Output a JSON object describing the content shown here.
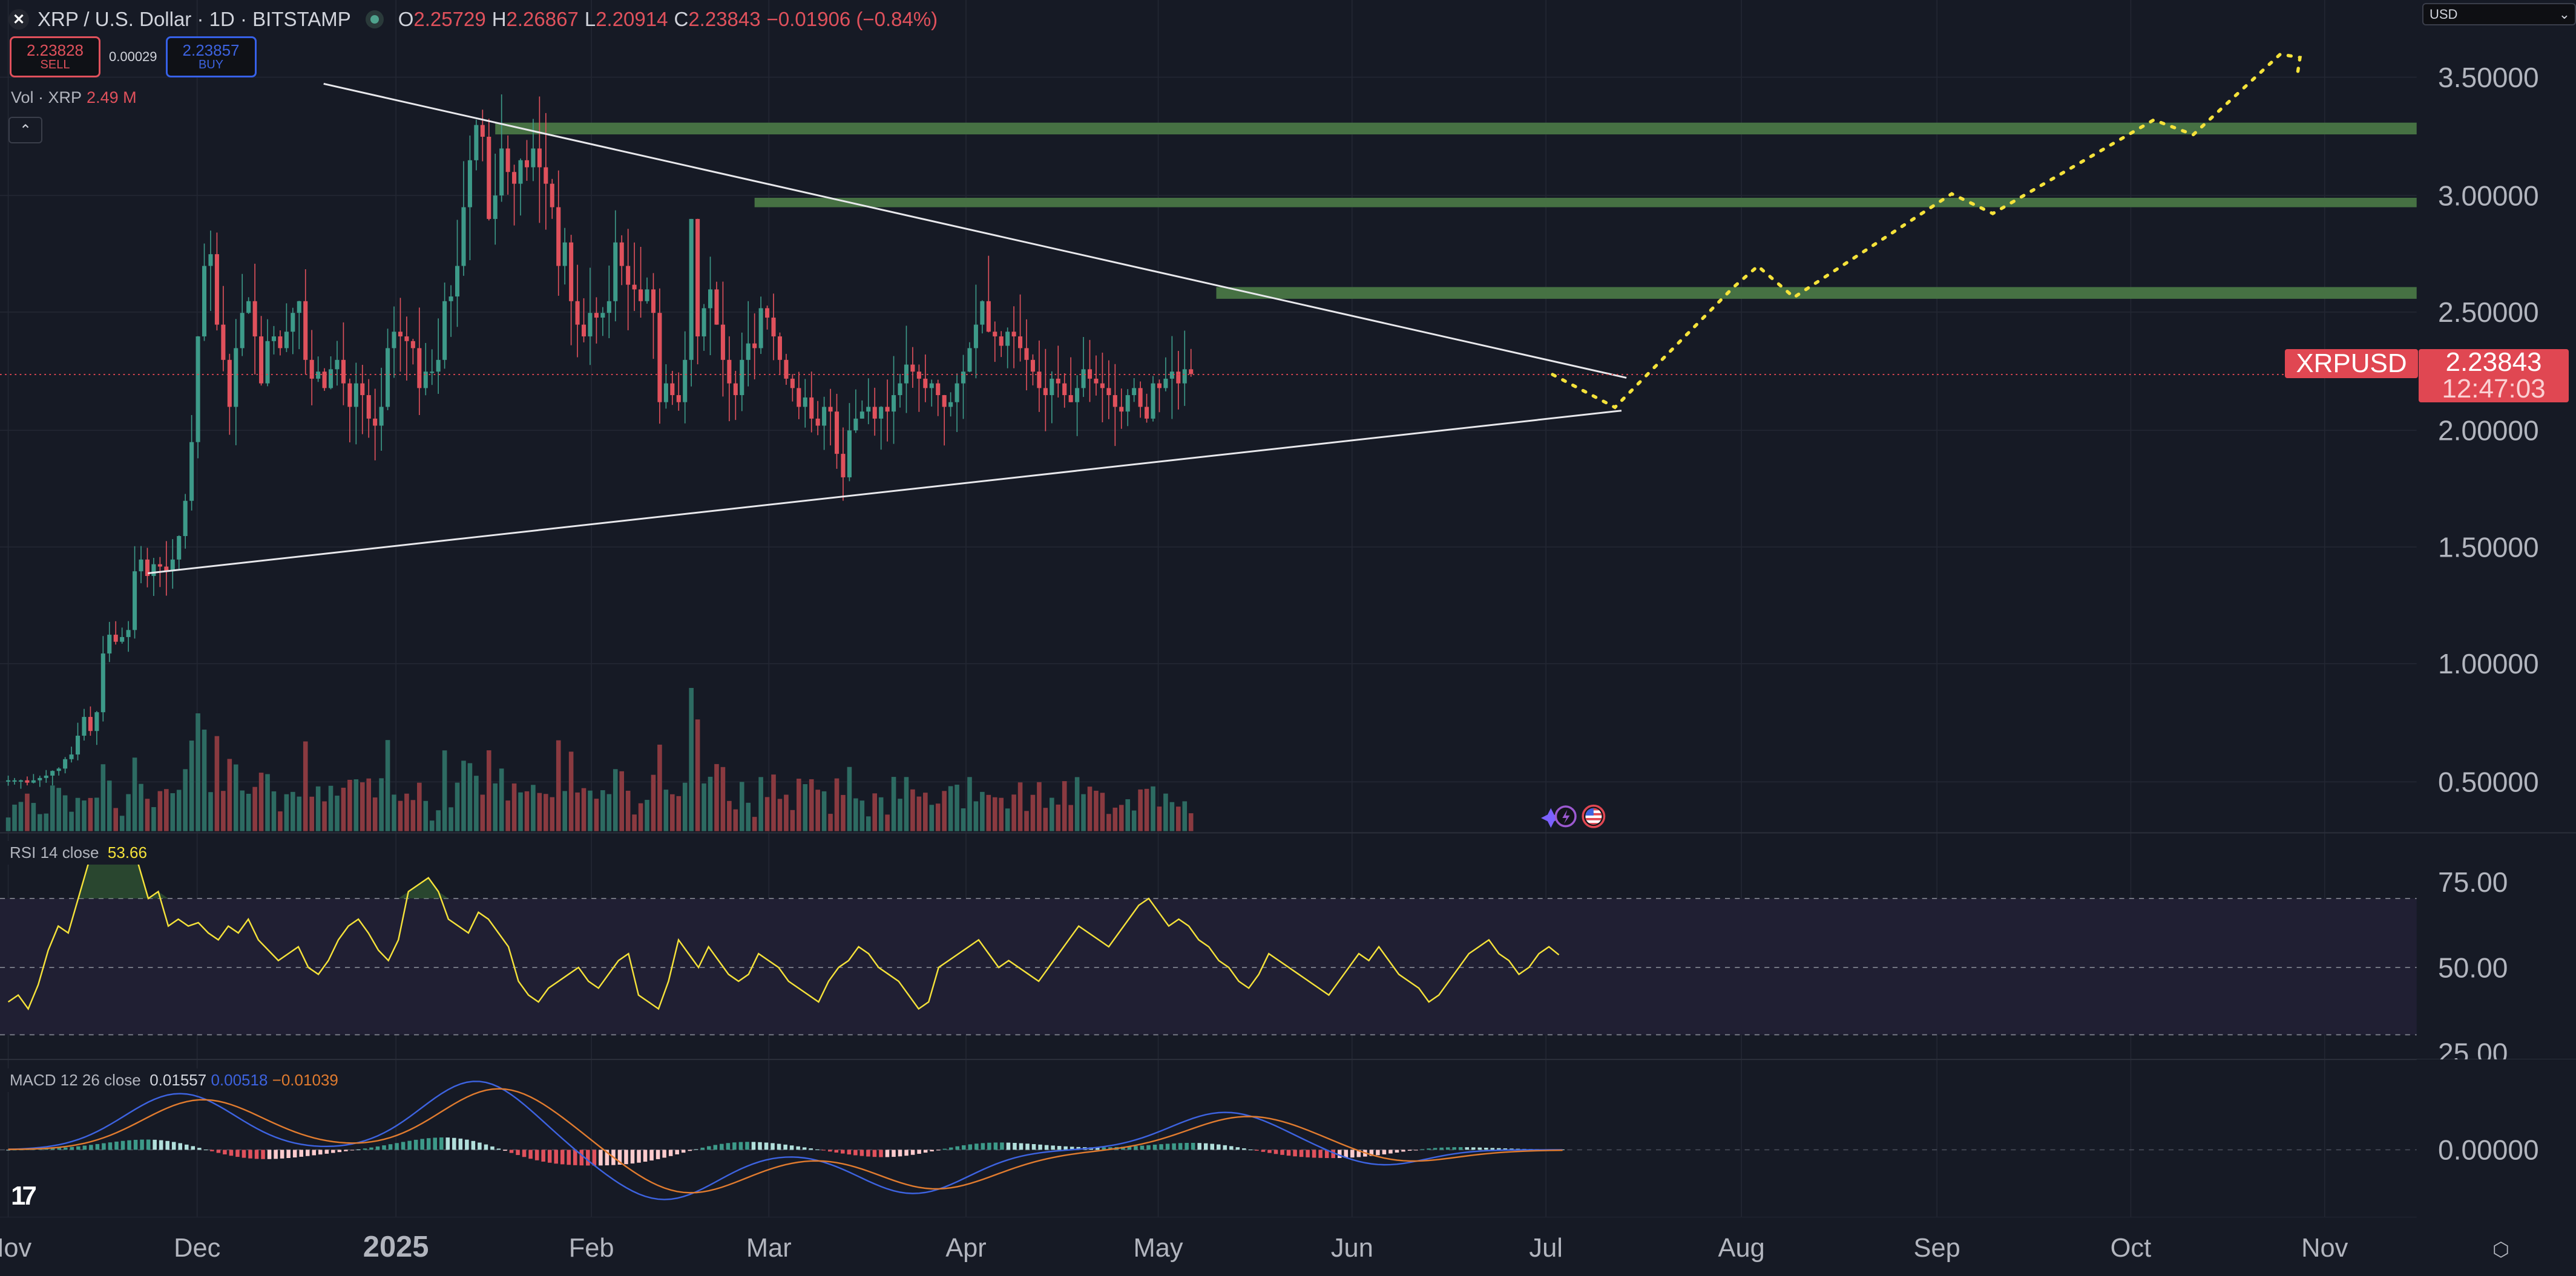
{
  "header": {
    "title": "XRP / U.S. Dollar · 1D · BITSTAMP",
    "ohlc": {
      "o_label": "O",
      "o": "2.25729",
      "h_label": "H",
      "h": "2.26867",
      "l_label": "L",
      "l": "2.20914",
      "c_label": "C",
      "c": "2.23843",
      "change": "−0.01906 (−0.84%)"
    }
  },
  "trade": {
    "sell_price": "2.23828",
    "sell_label": "SELL",
    "spread": "0.00029",
    "buy_price": "2.23857",
    "buy_label": "BUY"
  },
  "volume_legend": {
    "label": "Vol · XRP",
    "value": "2.49 M"
  },
  "rsi_legend": {
    "label": "RSI 14 close",
    "value": "53.66"
  },
  "macd_legend": {
    "label": "MACD 12 26 close",
    "hist": "0.01557",
    "macd": "0.00518",
    "signal": "−0.01039"
  },
  "currency_select": {
    "value": "USD"
  },
  "last_price": {
    "symbol": "XRPUSD",
    "price": "2.23843",
    "countdown": "12:47:03"
  },
  "colors": {
    "background": "#161a25",
    "up": "#3d9a89",
    "down": "#e0515c",
    "zone": "#467143",
    "rsi": "#f5e23a",
    "macd": "#3d63e0",
    "signal": "#e07b2f",
    "projection": "#f5e23a",
    "price_label": "#e04752"
  },
  "chart_data": [
    {
      "type": "candlestick",
      "title": "XRP / U.S. Dollar · 1D · BITSTAMP",
      "xlabel": "",
      "ylabel": "USD",
      "ylim": [
        0.35,
        3.75
      ],
      "x_ticks": [
        "Nov",
        "Dec",
        "2025",
        "Feb",
        "Mar",
        "Apr",
        "May",
        "Jun",
        "Jul",
        "Aug",
        "Sep",
        "Oct",
        "Nov"
      ],
      "y_ticks": [
        "3.50000",
        "3.00000",
        "2.50000",
        "2.00000",
        "1.50000",
        "1.00000",
        "0.50000"
      ],
      "grid": true,
      "approx_daily_closes": {
        "start": "2024-10-31",
        "values": [
          0.51,
          0.51,
          0.51,
          0.5,
          0.51,
          0.52,
          0.53,
          0.55,
          0.56,
          0.6,
          0.62,
          0.7,
          0.78,
          0.72,
          0.8,
          1.05,
          1.13,
          1.1,
          1.12,
          1.15,
          1.4,
          1.45,
          1.38,
          1.43,
          1.42,
          1.4,
          1.45,
          1.55,
          1.7,
          1.95,
          2.4,
          2.7,
          2.75,
          2.45,
          2.3,
          2.1,
          2.35,
          2.5,
          2.55,
          2.4,
          2.2,
          2.38,
          2.4,
          2.35,
          2.42,
          2.5,
          2.55,
          2.3,
          2.22,
          2.25,
          2.18,
          2.26,
          2.3,
          2.2,
          2.1,
          2.2,
          2.15,
          2.05,
          2.02,
          2.1,
          2.35,
          2.42,
          2.4,
          2.38,
          2.35,
          2.18,
          2.25,
          2.25,
          2.3,
          2.55,
          2.57,
          2.7,
          2.95,
          3.15,
          3.3,
          3.25,
          2.9,
          3.0,
          3.2,
          3.1,
          3.05,
          3.15,
          3.12,
          3.2,
          3.12,
          3.05,
          2.95,
          2.7,
          2.8,
          2.55,
          2.45,
          2.4,
          2.5,
          2.48,
          2.5,
          2.55,
          2.8,
          2.7,
          2.62,
          2.6,
          2.55,
          2.6,
          2.5,
          2.12,
          2.2,
          2.15,
          2.12,
          2.3,
          2.9,
          2.4,
          2.52,
          2.6,
          2.45,
          2.3,
          2.2,
          2.15,
          2.3,
          2.37,
          2.35,
          2.52,
          2.48,
          2.4,
          2.3,
          2.22,
          2.18,
          2.1,
          2.14,
          2.05,
          2.02,
          2.1,
          2.08,
          1.9,
          1.8,
          2.0,
          2.05,
          2.08,
          2.1,
          2.05,
          2.1,
          2.08,
          2.15,
          2.2,
          2.28,
          2.25,
          2.22,
          2.18,
          2.2,
          2.15,
          2.1,
          2.12,
          2.2,
          2.25,
          2.35,
          2.45,
          2.55,
          2.42,
          2.4,
          2.36,
          2.42,
          2.4,
          2.35,
          2.3,
          2.25,
          2.18,
          2.15,
          2.22,
          2.2,
          2.15,
          2.12,
          2.18,
          2.26,
          2.22,
          2.2,
          2.18,
          2.15,
          2.1,
          2.08,
          2.15,
          2.18,
          2.1,
          2.05,
          2.2,
          2.18,
          2.22,
          2.25,
          2.2,
          2.26,
          2.24
        ]
      }
    },
    {
      "type": "line",
      "title": "Drawn trendlines & zones",
      "descending_trendline": {
        "from": [
          "2024-12-24",
          3.48
        ],
        "to": [
          "2025-07-14",
          2.22
        ]
      },
      "ascending_trendline": {
        "from": [
          "2024-11-23",
          1.4
        ],
        "to": [
          "2025-07-13",
          2.07
        ]
      },
      "resistance_zones": [
        {
          "from": "2025-01-16",
          "y_low": 3.26,
          "y_high": 3.31
        },
        {
          "from": "2025-02-26",
          "y_low": 2.95,
          "y_high": 2.99
        },
        {
          "from": "2025-05-10",
          "y_low": 2.56,
          "y_high": 2.61
        }
      ],
      "projection_path": [
        [
          "2025-07-02",
          2.24
        ],
        [
          "2025-07-12",
          2.06
        ],
        [
          "2025-07-24",
          2.52
        ],
        [
          "2025-08-03",
          2.7
        ],
        [
          "2025-08-09",
          2.55
        ],
        [
          "2025-08-31",
          3.0
        ],
        [
          "2025-09-08",
          2.92
        ],
        [
          "2025-10-03",
          3.32
        ],
        [
          "2025-10-10",
          3.26
        ],
        [
          "2025-10-27",
          3.62
        ],
        [
          "2025-10-29",
          3.58
        ],
        [
          "2025-10-28",
          3.5
        ]
      ]
    },
    {
      "type": "line",
      "title": "RSI 14 close",
      "ylim": [
        20,
        90
      ],
      "y_ticks": [
        "75.00",
        "50.00",
        "25.00"
      ],
      "bands": [
        30,
        50,
        70
      ],
      "last_value": 53.66
    },
    {
      "type": "bar",
      "title": "MACD 12 26 close",
      "y_ticks": [
        "0.00000"
      ],
      "last_values": {
        "histogram": 0.01557,
        "macd": 0.00518,
        "signal": -0.01039
      }
    }
  ],
  "x_axis": {
    "labels": [
      "Nov",
      "Dec",
      "2025",
      "Feb",
      "Mar",
      "Apr",
      "May",
      "Jun",
      "Jul",
      "Aug",
      "Sep",
      "Oct",
      "Nov"
    ]
  },
  "y_axis": {
    "labels": [
      "3.50000",
      "3.00000",
      "2.50000",
      "2.00000",
      "1.50000",
      "1.00000",
      "0.50000"
    ],
    "rsi_labels": [
      "75.00",
      "50.00",
      "25.00"
    ],
    "macd_labels": [
      "0.00000"
    ]
  },
  "icons": {
    "header_symbol": "xrp-logo-icon",
    "status_dot": "market-open-dot-icon",
    "collapse": "chevron-up-icon",
    "currency_chevron": "chevron-down-icon",
    "events": [
      "sparkle-icon",
      "lightning-icon",
      "us-flag-icon"
    ],
    "settings": "gear-icon",
    "brand": "tradingview-logo-icon"
  }
}
